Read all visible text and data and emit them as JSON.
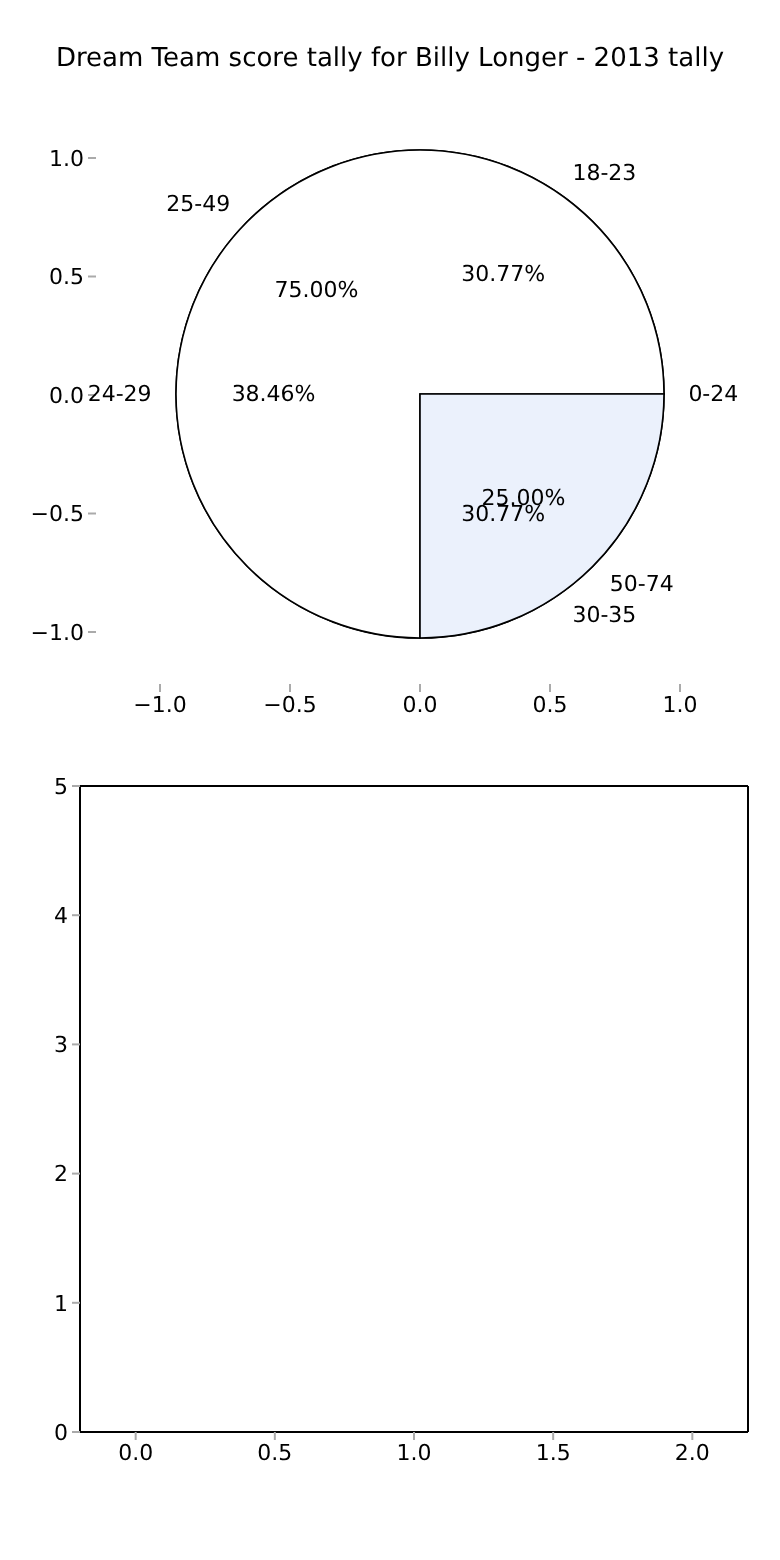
{
  "chart_data": [
    {
      "type": "scatter",
      "title": "Dream Team score tally for Billy Longer - 2013 tally",
      "xlim": [
        -1,
        1
      ],
      "ylim": [
        -1,
        1
      ],
      "xticks": [
        {
          "value": -1,
          "label": "−1.0"
        },
        {
          "value": -0.5,
          "label": "−0.5"
        },
        {
          "value": 0,
          "label": "0.0"
        },
        {
          "value": 0.5,
          "label": "0.5"
        },
        {
          "value": 1,
          "label": "1.0"
        }
      ],
      "yticks": [
        {
          "value": -1,
          "label": "−1.0"
        },
        {
          "value": -0.5,
          "label": "−0.5"
        },
        {
          "value": 0,
          "label": "0.0"
        },
        {
          "value": 0.5,
          "label": "0.5"
        },
        {
          "value": 1,
          "label": "1.0"
        }
      ]
    },
    {
      "type": "pie",
      "categories": [
        "18-23",
        "24-29",
        "30-35"
      ],
      "values": [
        30.77,
        38.46,
        30.77
      ],
      "colors": [
        "#ffffff",
        "#ffffff",
        "#c6d9f9"
      ],
      "value_labels": [
        "30.77%",
        "38.46%",
        "30.77%"
      ]
    },
    {
      "type": "pie",
      "categories": [
        "25-49",
        "50-74",
        "0-24"
      ],
      "values": [
        75,
        25,
        0
      ],
      "colors": [
        "#ffffff",
        "#ebf1fc",
        "#ffffff"
      ],
      "value_labels": [
        "75.00%",
        "25.00%",
        null
      ]
    },
    {
      "type": "scatter",
      "xlim": [
        -0.2,
        2.2
      ],
      "ylim": [
        0,
        5
      ],
      "xticks": [
        {
          "value": 0,
          "label": "0.0"
        },
        0.5,
        {
          "value": 1,
          "label": "1.0"
        },
        1.5,
        {
          "value": 2,
          "label": "2.0"
        }
      ],
      "yticks": [
        0,
        1,
        2,
        3,
        4,
        5
      ]
    }
  ]
}
